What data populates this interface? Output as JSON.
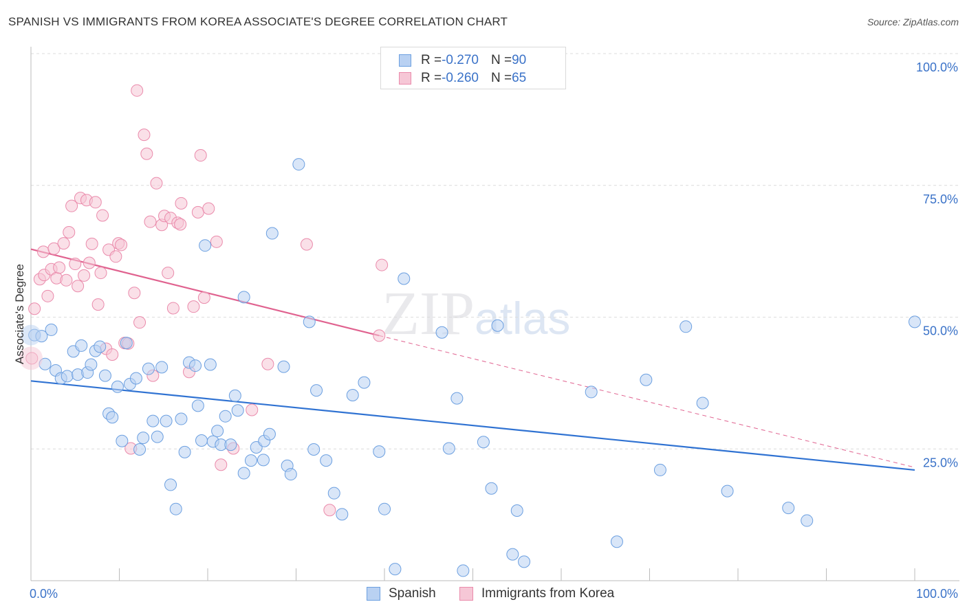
{
  "title": "SPANISH VS IMMIGRANTS FROM KOREA ASSOCIATE'S DEGREE CORRELATION CHART",
  "source": "Source: ZipAtlas.com",
  "watermark": {
    "zip": "ZIP",
    "atlas": "atlas"
  },
  "legend": {
    "rows": [
      {
        "r_label": "R = ",
        "r_value": "-0.270",
        "n_label": "N = ",
        "n_value": "90"
      },
      {
        "r_label": "R = ",
        "r_value": "-0.260",
        "n_label": "N = ",
        "n_value": "65"
      }
    ]
  },
  "bottom_legend": {
    "spanish": "Spanish",
    "korea": "Immigrants from Korea"
  },
  "chart_data": {
    "type": "scatter",
    "ylabel": "Associate's Degree",
    "xlim": [
      0,
      100
    ],
    "ylim": [
      0,
      100
    ],
    "x_tick_labels": [
      "0.0%",
      "100.0%"
    ],
    "y_tick_labels": [
      "25.0%",
      "50.0%",
      "75.0%",
      "100.0%"
    ],
    "y_ticks": [
      25,
      50,
      75,
      100
    ],
    "grid": true,
    "colors": {
      "spanish": "#6b9fe0",
      "spanish_fill": "#b9d1f2",
      "korea": "#ea8aab",
      "korea_fill": "#f6c7d6",
      "spanish_line": "#2f72d2",
      "korea_line": "#e0628f"
    },
    "series": [
      {
        "name": "Spanish",
        "trend": [
          [
            0,
            37.9
          ],
          [
            100,
            21.0
          ]
        ],
        "points": [
          [
            0.4,
            46.6
          ],
          [
            1.6,
            41.1
          ],
          [
            1.2,
            46.4
          ],
          [
            2.3,
            47.6
          ],
          [
            2.8,
            39.9
          ],
          [
            3.4,
            38.4
          ],
          [
            4.1,
            38.8
          ],
          [
            4.8,
            43.5
          ],
          [
            5.3,
            39.1
          ],
          [
            5.7,
            44.6
          ],
          [
            6.4,
            39.5
          ],
          [
            6.8,
            41.0
          ],
          [
            7.3,
            43.6
          ],
          [
            7.8,
            44.4
          ],
          [
            8.4,
            38.9
          ],
          [
            8.8,
            31.7
          ],
          [
            9.2,
            31.0
          ],
          [
            9.8,
            36.8
          ],
          [
            10.3,
            26.5
          ],
          [
            10.8,
            45.1
          ],
          [
            11.2,
            37.3
          ],
          [
            11.9,
            38.4
          ],
          [
            12.3,
            24.9
          ],
          [
            12.7,
            27.1
          ],
          [
            13.3,
            40.2
          ],
          [
            13.8,
            30.3
          ],
          [
            14.3,
            27.3
          ],
          [
            14.8,
            40.5
          ],
          [
            15.3,
            30.3
          ],
          [
            15.8,
            18.2
          ],
          [
            16.4,
            13.6
          ],
          [
            17.0,
            30.7
          ],
          [
            17.4,
            24.4
          ],
          [
            17.9,
            41.4
          ],
          [
            18.6,
            40.8
          ],
          [
            18.9,
            33.2
          ],
          [
            19.3,
            26.6
          ],
          [
            19.7,
            63.6
          ],
          [
            20.6,
            26.4
          ],
          [
            21.1,
            28.4
          ],
          [
            21.5,
            25.8
          ],
          [
            22.0,
            31.2
          ],
          [
            22.6,
            25.8
          ],
          [
            23.1,
            35.1
          ],
          [
            23.4,
            32.3
          ],
          [
            24.1,
            53.8
          ],
          [
            24.1,
            20.4
          ],
          [
            24.9,
            22.8
          ],
          [
            25.5,
            25.3
          ],
          [
            26.3,
            22.9
          ],
          [
            26.4,
            26.5
          ],
          [
            27.0,
            27.8
          ],
          [
            27.3,
            65.9
          ],
          [
            28.6,
            40.6
          ],
          [
            29.0,
            21.8
          ],
          [
            29.4,
            20.2
          ],
          [
            30.3,
            79.0
          ],
          [
            31.5,
            49.1
          ],
          [
            32.0,
            24.9
          ],
          [
            32.3,
            36.1
          ],
          [
            33.4,
            22.8
          ],
          [
            34.3,
            16.6
          ],
          [
            35.2,
            12.6
          ],
          [
            36.4,
            35.2
          ],
          [
            37.7,
            37.6
          ],
          [
            39.4,
            24.5
          ],
          [
            40.0,
            13.6
          ],
          [
            42.2,
            57.3
          ],
          [
            41.2,
            2.2
          ],
          [
            46.5,
            47.1
          ],
          [
            47.3,
            25.1
          ],
          [
            48.2,
            34.6
          ],
          [
            48.9,
            1.9
          ],
          [
            51.2,
            26.3
          ],
          [
            52.1,
            17.5
          ],
          [
            52.8,
            48.4
          ],
          [
            55.0,
            13.3
          ],
          [
            55.8,
            3.6
          ],
          [
            63.4,
            35.8
          ],
          [
            69.6,
            38.1
          ],
          [
            71.2,
            21.0
          ],
          [
            74.1,
            48.2
          ],
          [
            76.0,
            33.7
          ],
          [
            78.8,
            17.0
          ],
          [
            85.7,
            13.8
          ],
          [
            87.8,
            11.4
          ],
          [
            100.0,
            49.1
          ],
          [
            54.5,
            5.0
          ],
          [
            66.3,
            7.4
          ],
          [
            20.3,
            41.0
          ]
        ]
      },
      {
        "name": "Immigrants from Korea",
        "trend": [
          [
            0,
            62.9
          ],
          [
            39.4,
            46.5
          ]
        ],
        "trend_dashed": [
          [
            39.4,
            46.5
          ],
          [
            100,
            21.5
          ]
        ],
        "points": [
          [
            0.1,
            42.2
          ],
          [
            0.4,
            51.6
          ],
          [
            1.0,
            57.2
          ],
          [
            1.5,
            58.0
          ],
          [
            1.4,
            62.4
          ],
          [
            1.9,
            54.0
          ],
          [
            2.3,
            59.1
          ],
          [
            2.6,
            63.0
          ],
          [
            2.9,
            57.4
          ],
          [
            3.2,
            59.4
          ],
          [
            3.7,
            64.0
          ],
          [
            4.0,
            57.0
          ],
          [
            4.3,
            66.1
          ],
          [
            4.6,
            71.1
          ],
          [
            5.0,
            60.1
          ],
          [
            5.3,
            55.9
          ],
          [
            5.6,
            72.6
          ],
          [
            6.0,
            57.9
          ],
          [
            6.3,
            72.2
          ],
          [
            6.6,
            60.3
          ],
          [
            6.9,
            63.9
          ],
          [
            7.3,
            71.8
          ],
          [
            7.6,
            52.4
          ],
          [
            7.9,
            58.4
          ],
          [
            8.1,
            69.3
          ],
          [
            8.5,
            44.0
          ],
          [
            8.8,
            62.8
          ],
          [
            9.2,
            42.9
          ],
          [
            9.6,
            61.5
          ],
          [
            9.9,
            64.0
          ],
          [
            10.2,
            63.7
          ],
          [
            10.6,
            45.1
          ],
          [
            11.0,
            45.0
          ],
          [
            11.3,
            25.1
          ],
          [
            11.7,
            54.6
          ],
          [
            12.0,
            93.0
          ],
          [
            12.3,
            49.0
          ],
          [
            12.8,
            84.6
          ],
          [
            13.1,
            81.0
          ],
          [
            13.5,
            68.1
          ],
          [
            13.8,
            38.9
          ],
          [
            14.2,
            75.4
          ],
          [
            14.8,
            67.5
          ],
          [
            15.1,
            69.2
          ],
          [
            15.5,
            58.4
          ],
          [
            15.8,
            68.8
          ],
          [
            16.1,
            51.7
          ],
          [
            16.6,
            67.9
          ],
          [
            17.0,
            71.6
          ],
          [
            17.9,
            39.6
          ],
          [
            18.4,
            52.0
          ],
          [
            18.9,
            69.9
          ],
          [
            19.2,
            80.7
          ],
          [
            19.6,
            53.7
          ],
          [
            20.1,
            70.6
          ],
          [
            21.0,
            64.3
          ],
          [
            21.5,
            22.0
          ],
          [
            22.9,
            25.1
          ],
          [
            25.0,
            32.4
          ],
          [
            26.8,
            41.1
          ],
          [
            31.2,
            63.8
          ],
          [
            33.8,
            13.4
          ],
          [
            39.4,
            46.5
          ],
          [
            39.7,
            59.9
          ],
          [
            16.9,
            67.6
          ]
        ]
      }
    ]
  }
}
